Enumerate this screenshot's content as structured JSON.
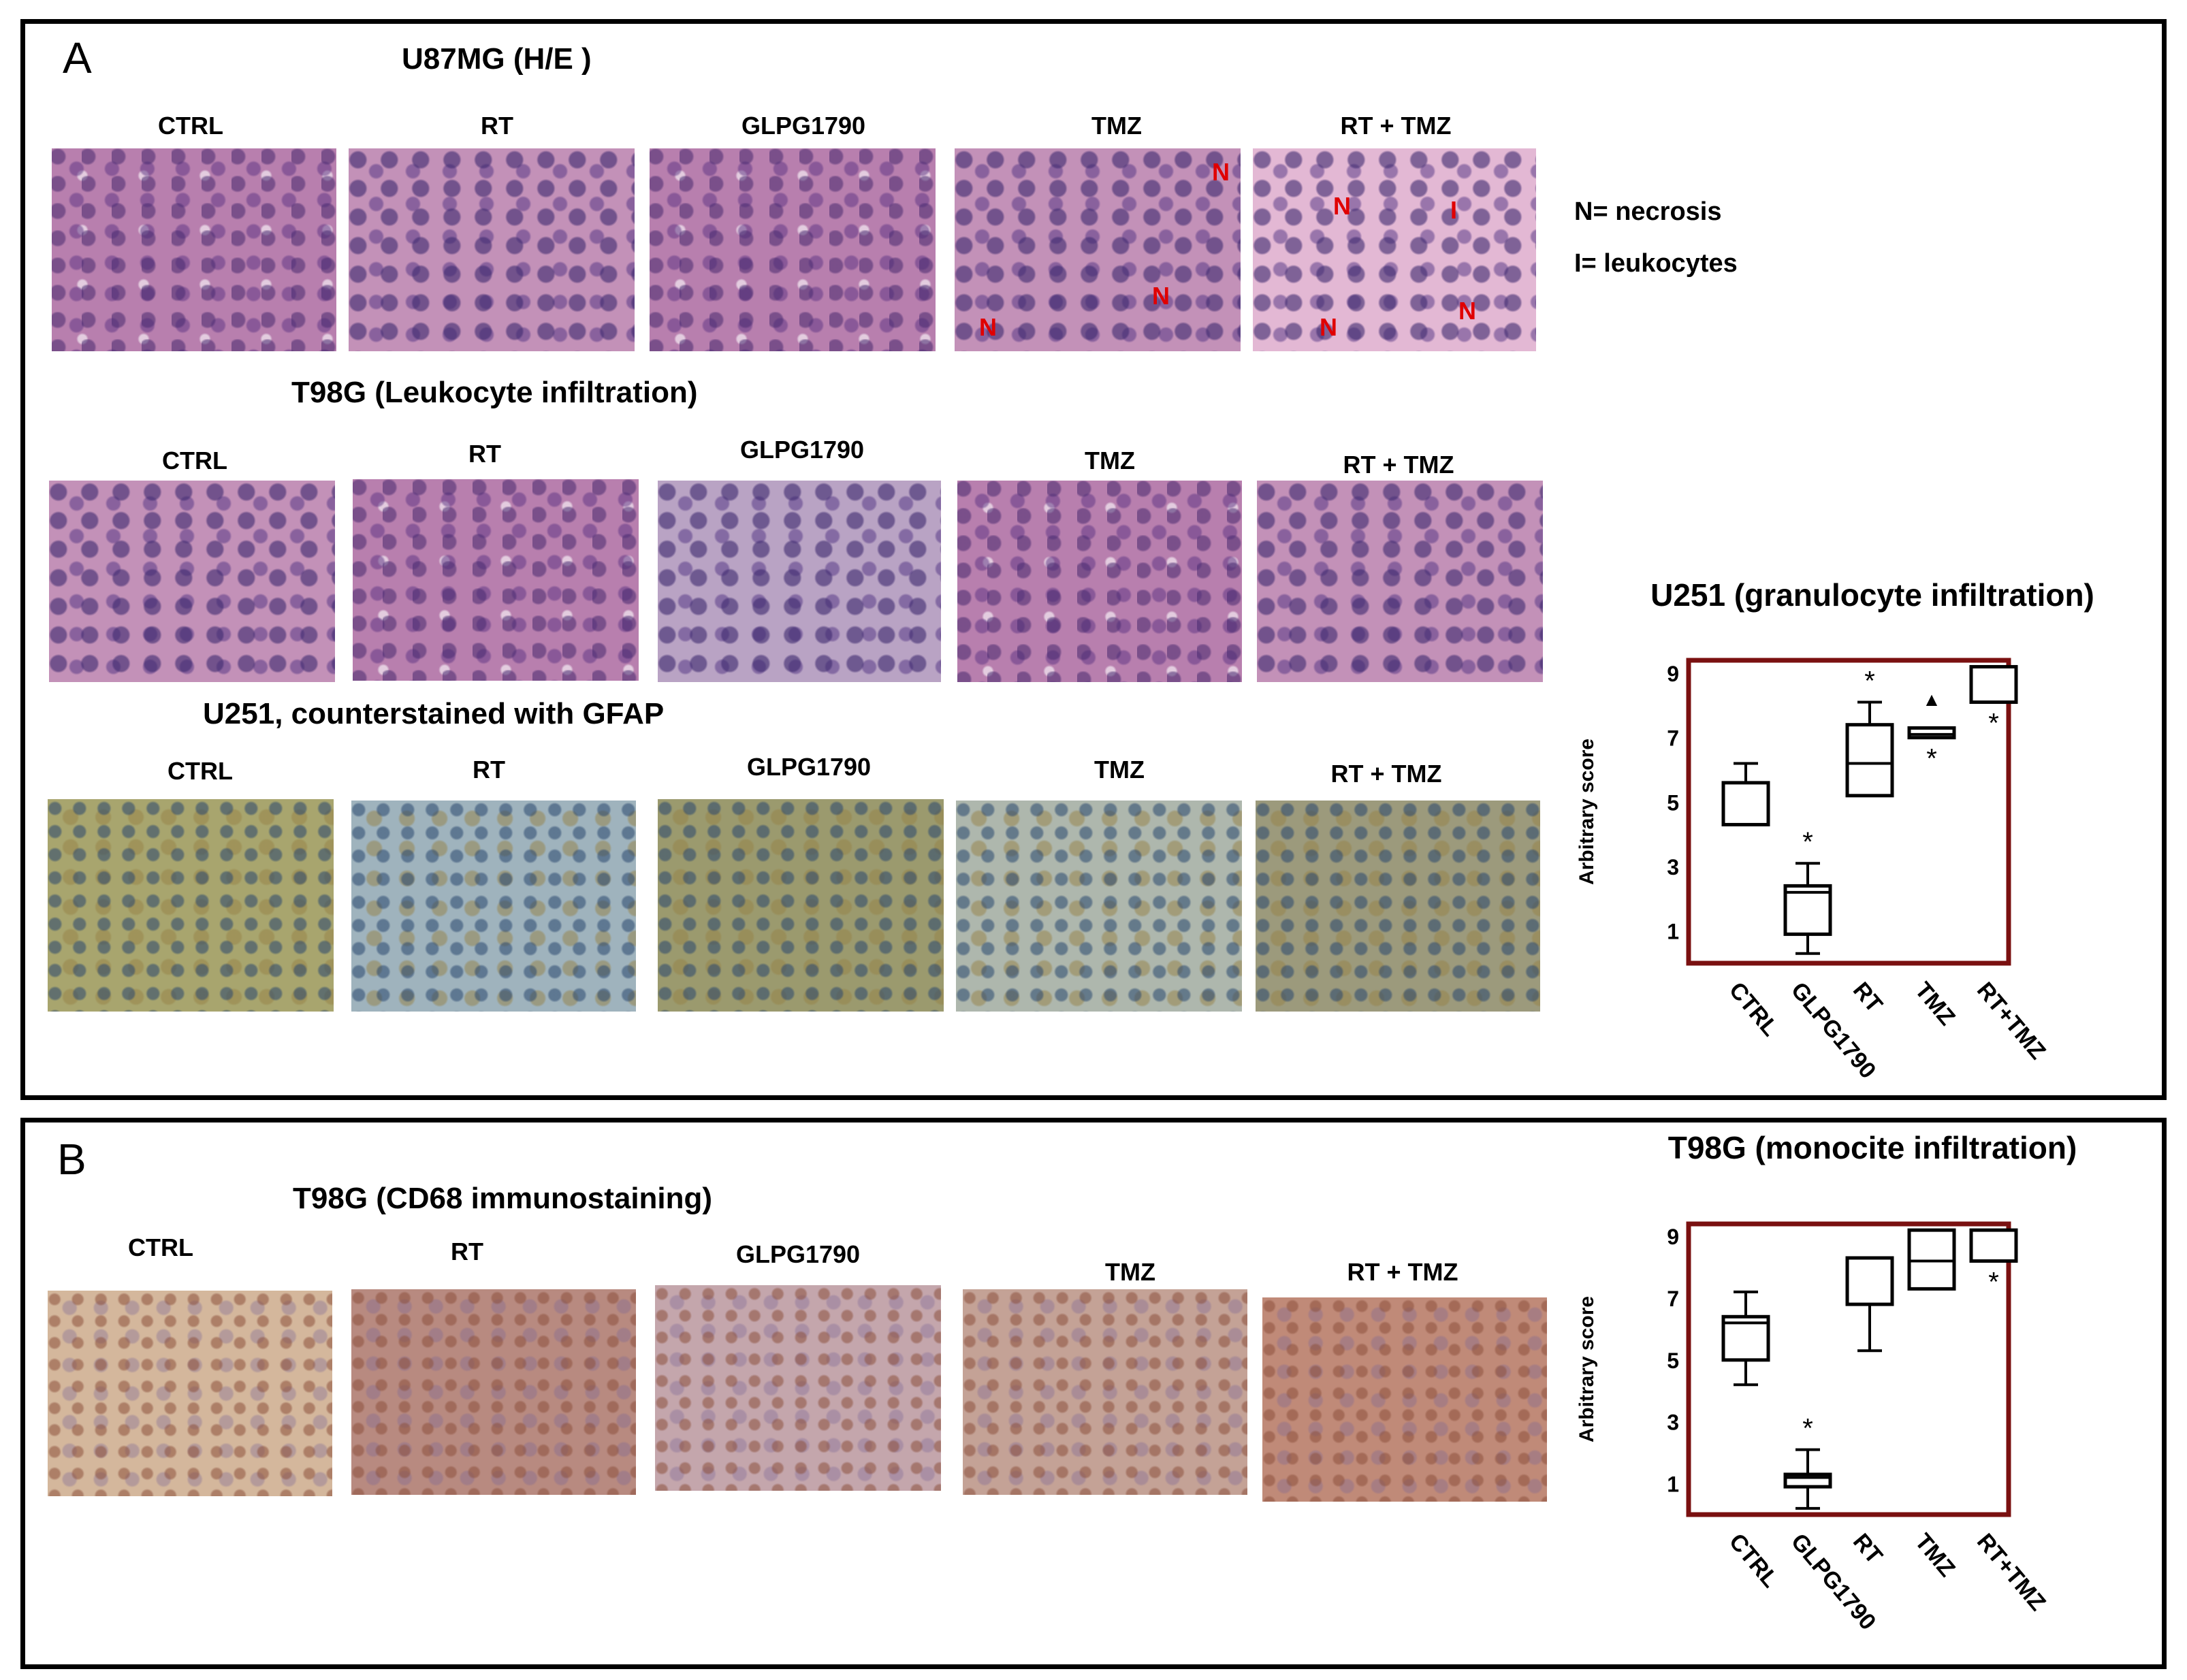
{
  "panelA": {
    "letter": "A",
    "row1": {
      "title": "U87MG (H/E )",
      "labels": [
        "CTRL",
        "RT",
        "GLPG1790",
        "TMZ",
        "RT + TMZ"
      ]
    },
    "row2": {
      "title": "T98G (Leukocyte infiltration)",
      "labels": [
        "CTRL",
        "RT",
        "GLPG1790",
        "TMZ",
        "RT + TMZ"
      ]
    },
    "row3": {
      "title": "U251, counterstained with GFAP",
      "labels": [
        "CTRL",
        "RT",
        "GLPG1790",
        "TMZ",
        "RT + TMZ"
      ]
    },
    "legend": {
      "necrosis": "N= necrosis",
      "leukocytes": "I= leukocytes"
    },
    "marks": {
      "necrosis": "N",
      "leukocyte": "I"
    }
  },
  "panelB": {
    "letter": "B",
    "title": "T98G (CD68 immunostaining)",
    "labels": [
      "CTRL",
      "RT",
      "GLPG1790",
      "TMZ",
      "RT + TMZ"
    ]
  },
  "colors": {
    "frame": "#7a1010",
    "necrosis": "#e00000"
  },
  "chart_data": [
    {
      "type": "box",
      "title": "U251 (granulocyte infiltration)",
      "ylabel": "Arbitrary score",
      "ylim": [
        0,
        9.4
      ],
      "yticks": [
        1,
        3,
        5,
        7,
        9
      ],
      "categories": [
        "CTRL",
        "GLPG1790",
        "RT",
        "TMZ",
        "RT+TMZ"
      ],
      "boxes": [
        {
          "min": 4.3,
          "q1": 4.3,
          "median": 4.3,
          "q3": 5.6,
          "max": 6.2,
          "star": false
        },
        {
          "min": 0.3,
          "q1": 0.9,
          "median": 2.2,
          "q3": 2.4,
          "max": 3.1,
          "star": true
        },
        {
          "min": 5.2,
          "q1": 5.2,
          "median": 6.2,
          "q3": 7.4,
          "max": 8.1,
          "star": true
        },
        {
          "min": 7.0,
          "q1": 7.0,
          "median": 7.1,
          "q3": 7.3,
          "max": 7.3,
          "star": true,
          "outlier": 8.2
        },
        {
          "min": 8.1,
          "q1": 8.1,
          "median": 8.1,
          "q3": 9.2,
          "max": 9.2,
          "star": true
        }
      ],
      "marks": {
        "star": "*",
        "outlier": "▲"
      }
    },
    {
      "type": "box",
      "title": "T98G (monocite infiltration)",
      "ylabel": "Arbitrary score",
      "ylim": [
        0,
        9.4
      ],
      "yticks": [
        1,
        3,
        5,
        7,
        9
      ],
      "categories": [
        "CTRL",
        "GLPG1790",
        "RT",
        "TMZ",
        "RT+TMZ"
      ],
      "boxes": [
        {
          "min": 4.2,
          "q1": 5.0,
          "median": 6.2,
          "q3": 6.4,
          "max": 7.2,
          "star": false
        },
        {
          "min": 0.2,
          "q1": 0.9,
          "median": 1.2,
          "q3": 1.3,
          "max": 2.1,
          "star": true
        },
        {
          "min": 5.3,
          "q1": 6.8,
          "median": 6.8,
          "q3": 8.3,
          "max": 8.3,
          "star": false
        },
        {
          "min": 7.3,
          "q1": 7.3,
          "median": 8.2,
          "q3": 9.2,
          "max": 9.2,
          "star": false
        },
        {
          "min": 8.2,
          "q1": 8.2,
          "median": 8.2,
          "q3": 9.2,
          "max": 9.2,
          "star": true
        }
      ],
      "marks": {
        "star": "*"
      }
    }
  ]
}
